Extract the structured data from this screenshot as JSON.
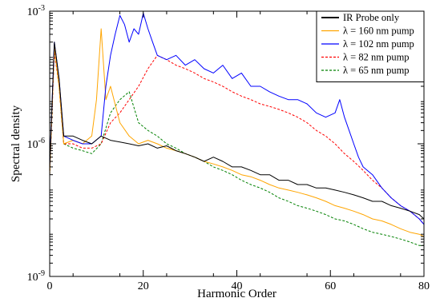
{
  "chart_data": {
    "type": "line",
    "xlabel": "Harmonic Order",
    "ylabel": "Spectral density",
    "xlim": [
      0,
      80
    ],
    "ylim": [
      1e-09,
      0.001
    ],
    "yscale": "log",
    "grid": false,
    "legend_position": "top-right",
    "x_ticks": [
      0,
      20,
      40,
      60,
      80
    ],
    "x_tick_labels": [
      "0",
      "20",
      "40",
      "60",
      "80"
    ],
    "y_ticks": [
      1e-09,
      1e-06,
      0.001
    ],
    "y_tick_labels": [
      {
        "base": "10",
        "exp": "-9"
      },
      {
        "base": "10",
        "exp": "-6"
      },
      {
        "base": "10",
        "exp": "-3"
      }
    ],
    "series": [
      {
        "name": "IR Probe only",
        "color": "#000000",
        "dash": "solid",
        "x": [
          0,
          1,
          2,
          3,
          5,
          7,
          9,
          11,
          13,
          15,
          17,
          19,
          21,
          23,
          25,
          27,
          29,
          31,
          33,
          35,
          37,
          39,
          41,
          43,
          45,
          47,
          49,
          51,
          53,
          55,
          57,
          59,
          61,
          63,
          65,
          67,
          69,
          71,
          73,
          75,
          77,
          79,
          80
        ],
        "y": [
          3e-07,
          0.0002,
          3e-05,
          1.5e-06,
          1.5e-06,
          1.2e-06,
          1e-06,
          1.5e-06,
          1.2e-06,
          1.1e-06,
          1e-06,
          9e-07,
          1e-06,
          8e-07,
          9e-07,
          7e-07,
          6e-07,
          5e-07,
          4e-07,
          5e-07,
          4e-07,
          3e-07,
          3e-07,
          2.5e-07,
          2e-07,
          2e-07,
          1.5e-07,
          1.5e-07,
          1.2e-07,
          1.2e-07,
          1e-07,
          1e-07,
          9e-08,
          8e-08,
          7e-08,
          6e-08,
          5e-08,
          5e-08,
          4e-08,
          3.5e-08,
          3e-08,
          2.5e-08,
          2e-08
        ]
      },
      {
        "name": "λ = 160 nm pump",
        "color": "#ffa500",
        "dash": "solid",
        "x": [
          0,
          1,
          2,
          3,
          5,
          7,
          9,
          10,
          11,
          12,
          13,
          15,
          17,
          19,
          21,
          23,
          25,
          27,
          29,
          31,
          33,
          35,
          37,
          39,
          41,
          43,
          45,
          47,
          49,
          51,
          53,
          55,
          57,
          59,
          61,
          63,
          65,
          67,
          69,
          71,
          73,
          75,
          77,
          79,
          80
        ],
        "y": [
          2e-07,
          0.00015,
          2e-05,
          1e-06,
          1.2e-06,
          1e-06,
          1.5e-06,
          1e-05,
          0.0004,
          1e-05,
          2e-05,
          3e-06,
          1.5e-06,
          1e-06,
          1.2e-06,
          1e-06,
          8e-07,
          7e-07,
          6e-07,
          5e-07,
          4e-07,
          3.5e-07,
          3e-07,
          2.5e-07,
          2e-07,
          1.8e-07,
          1.5e-07,
          1.2e-07,
          1e-07,
          9e-08,
          8e-08,
          7e-08,
          6e-08,
          5e-08,
          4e-08,
          3.5e-08,
          3e-08,
          2.5e-08,
          2e-08,
          1.8e-08,
          1.5e-08,
          1.2e-08,
          1e-08,
          9e-09,
          8e-09
        ]
      },
      {
        "name": "λ = 102 nm pump",
        "color": "#0000ff",
        "dash": "solid",
        "x": [
          0,
          1,
          2,
          3,
          5,
          7,
          9,
          11,
          12,
          13,
          14,
          15,
          16,
          17,
          18,
          19,
          20,
          21,
          22,
          23,
          25,
          27,
          29,
          31,
          33,
          35,
          37,
          39,
          41,
          43,
          45,
          47,
          49,
          51,
          53,
          55,
          57,
          59,
          61,
          62,
          63,
          64,
          65,
          66,
          67,
          69,
          71,
          73,
          75,
          77,
          79,
          80
        ],
        "y": [
          3e-07,
          0.0002,
          3e-05,
          1.5e-06,
          1.2e-06,
          1e-06,
          1e-06,
          1.5e-06,
          2e-05,
          0.0001,
          0.0003,
          0.0008,
          0.0005,
          0.0002,
          0.0004,
          0.0003,
          0.0009,
          0.0004,
          0.0002,
          0.0001,
          8e-05,
          0.0001,
          6e-05,
          8e-05,
          5e-05,
          4e-05,
          6e-05,
          3e-05,
          4e-05,
          2e-05,
          2e-05,
          1.5e-05,
          1.2e-05,
          1e-05,
          1e-05,
          8e-06,
          5e-06,
          4e-06,
          5e-06,
          1e-05,
          4e-06,
          2e-06,
          1e-06,
          5e-07,
          3e-07,
          2e-07,
          1e-07,
          6e-08,
          4e-08,
          3e-08,
          2e-08,
          1.5e-08
        ]
      },
      {
        "name": "λ = 82 nm pump",
        "color": "#ff0000",
        "dash": "dashed",
        "x": [
          0,
          1,
          2,
          3,
          5,
          7,
          9,
          11,
          13,
          15,
          17,
          19,
          21,
          23,
          25,
          27,
          29,
          31,
          33,
          35,
          37,
          39,
          41,
          43,
          45,
          47,
          49,
          51,
          53,
          55,
          57,
          59,
          61,
          63,
          65,
          67,
          69,
          71,
          73,
          75,
          77,
          79,
          80
        ],
        "y": [
          2e-07,
          0.00012,
          2e-05,
          1e-06,
          1e-06,
          8e-07,
          8e-07,
          1e-06,
          3e-06,
          5e-06,
          1e-05,
          2e-05,
          5e-05,
          0.0001,
          8e-05,
          6e-05,
          5e-05,
          4e-05,
          3e-05,
          2.5e-05,
          2e-05,
          1.5e-05,
          1.2e-05,
          1e-05,
          8e-06,
          7e-06,
          6e-06,
          5e-06,
          4e-06,
          3e-06,
          2e-06,
          1.5e-06,
          1e-06,
          6e-07,
          4e-07,
          2.5e-07,
          1.5e-07,
          1e-07,
          6e-08,
          4e-08,
          3e-08,
          2e-08,
          1.5e-08
        ]
      },
      {
        "name": "λ = 65 nm pump",
        "color": "#008000",
        "dash": "dashed",
        "x": [
          0,
          1,
          2,
          3,
          5,
          7,
          9,
          11,
          13,
          15,
          17,
          19,
          21,
          23,
          25,
          27,
          29,
          31,
          33,
          35,
          37,
          39,
          41,
          43,
          45,
          47,
          49,
          51,
          53,
          55,
          57,
          59,
          61,
          63,
          65,
          67,
          69,
          71,
          73,
          75,
          77,
          79,
          80
        ],
        "y": [
          2e-07,
          0.00015,
          2e-05,
          1e-06,
          8e-07,
          7e-07,
          6e-07,
          1e-06,
          5e-06,
          1e-05,
          1.5e-05,
          3e-06,
          2e-06,
          1.5e-06,
          1e-06,
          8e-07,
          6e-07,
          5e-07,
          4e-07,
          3e-07,
          2.5e-07,
          2e-07,
          1.5e-07,
          1.2e-07,
          1e-07,
          8e-08,
          6e-08,
          5e-08,
          4e-08,
          3.5e-08,
          3e-08,
          2.5e-08,
          2e-08,
          1.8e-08,
          1.5e-08,
          1.2e-08,
          1e-08,
          9e-09,
          8e-09,
          7e-09,
          6e-09,
          5e-09,
          5e-09
        ]
      }
    ]
  }
}
